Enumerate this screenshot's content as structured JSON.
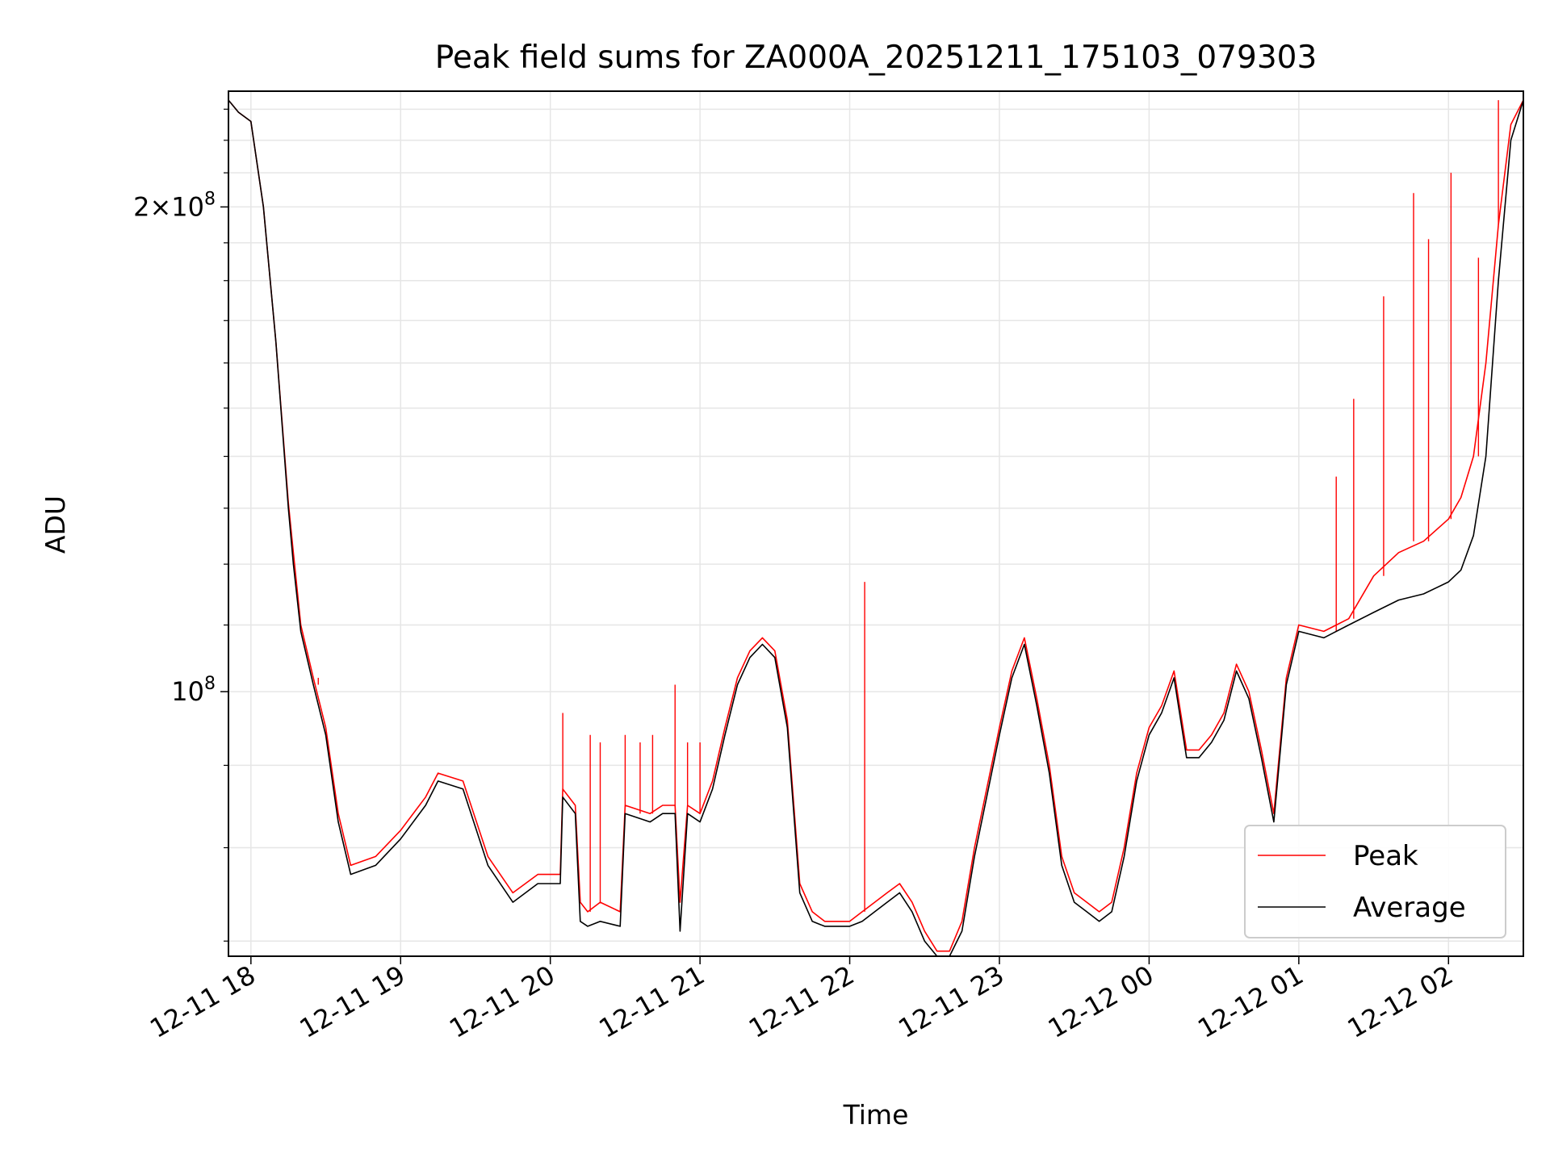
{
  "chart_data": {
    "type": "line",
    "title": "Peak field sums for ZA000A_20251211_175103_079303",
    "xlabel": "Time",
    "ylabel": "ADU",
    "yscale": "log",
    "ylim": [
      68500000,
      236000000
    ],
    "xlim": [
      "2025-12-11 17:51",
      "2025-12-12 02:30"
    ],
    "grid": true,
    "legend_position": "lower right",
    "x_ticks": [
      "12-11 18",
      "12-11 19",
      "12-11 20",
      "12-11 21",
      "12-11 22",
      "12-11 23",
      "12-12 00",
      "12-12 01",
      "12-12 02"
    ],
    "y_ticks": [
      {
        "label": "2 × 10^8",
        "mantissa": "2",
        "exp": "8",
        "value": 200000000
      },
      {
        "label": "10^8",
        "mantissa": "",
        "exp": "8",
        "value": 100000000
      }
    ],
    "series": [
      {
        "name": "Peak",
        "color": "#ff0000",
        "x": [
          "2025-12-11 17:51",
          "2025-12-11 17:55",
          "2025-12-11 18:00",
          "2025-12-11 18:05",
          "2025-12-11 18:10",
          "2025-12-11 18:15",
          "2025-12-11 18:17",
          "2025-12-11 18:20",
          "2025-12-11 18:25",
          "2025-12-11 18:30",
          "2025-12-11 18:35",
          "2025-12-11 18:40",
          "2025-12-11 18:50",
          "2025-12-11 19:00",
          "2025-12-11 19:10",
          "2025-12-11 19:15",
          "2025-12-11 19:25",
          "2025-12-11 19:35",
          "2025-12-11 19:45",
          "2025-12-11 19:55",
          "2025-12-11 20:04",
          "2025-12-11 20:05",
          "2025-12-11 20:10",
          "2025-12-11 20:12",
          "2025-12-11 20:15",
          "2025-12-11 20:20",
          "2025-12-11 20:28",
          "2025-12-11 20:30",
          "2025-12-11 20:40",
          "2025-12-11 20:45",
          "2025-12-11 20:50",
          "2025-12-11 20:52",
          "2025-12-11 20:55",
          "2025-12-11 21:00",
          "2025-12-11 21:05",
          "2025-12-11 21:10",
          "2025-12-11 21:15",
          "2025-12-11 21:20",
          "2025-12-11 21:25",
          "2025-12-11 21:30",
          "2025-12-11 21:35",
          "2025-12-11 21:40",
          "2025-12-11 21:45",
          "2025-12-11 21:50",
          "2025-12-11 22:00",
          "2025-12-11 22:05",
          "2025-12-11 22:10",
          "2025-12-11 22:15",
          "2025-12-11 22:20",
          "2025-12-11 22:25",
          "2025-12-11 22:30",
          "2025-12-11 22:35",
          "2025-12-11 22:40",
          "2025-12-11 22:45",
          "2025-12-11 22:50",
          "2025-12-11 23:00",
          "2025-12-11 23:05",
          "2025-12-11 23:10",
          "2025-12-11 23:15",
          "2025-12-11 23:20",
          "2025-12-11 23:25",
          "2025-12-11 23:30",
          "2025-12-11 23:35",
          "2025-12-11 23:40",
          "2025-12-11 23:45",
          "2025-12-11 23:50",
          "2025-12-11 23:55",
          "2025-12-12 00:00",
          "2025-12-12 00:05",
          "2025-12-12 00:10",
          "2025-12-12 00:15",
          "2025-12-12 00:20",
          "2025-12-12 00:25",
          "2025-12-12 00:30",
          "2025-12-12 00:35",
          "2025-12-12 00:40",
          "2025-12-12 00:45",
          "2025-12-12 00:50",
          "2025-12-12 00:55",
          "2025-12-12 01:00",
          "2025-12-12 01:10",
          "2025-12-12 01:20",
          "2025-12-12 01:30",
          "2025-12-12 01:40",
          "2025-12-12 01:50",
          "2025-12-12 02:00",
          "2025-12-12 02:05",
          "2025-12-12 02:10",
          "2025-12-12 02:15",
          "2025-12-12 02:20",
          "2025-12-12 02:25",
          "2025-12-12 02:30"
        ],
        "y": [
          233000000,
          229000000,
          226000000,
          200000000,
          165000000,
          131000000,
          122000000,
          110000000,
          102000000,
          95000000,
          84000000,
          78000000,
          79000000,
          82000000,
          86000000,
          89000000,
          88000000,
          79000000,
          75000000,
          77000000,
          77000000,
          87000000,
          85000000,
          74000000,
          73000000,
          74000000,
          73000000,
          85000000,
          84000000,
          85000000,
          85000000,
          74000000,
          85000000,
          84000000,
          88000000,
          95000000,
          102000000,
          106000000,
          108000000,
          106000000,
          96000000,
          76000000,
          73000000,
          72000000,
          72000000,
          73000000,
          74000000,
          75000000,
          76000000,
          74000000,
          71000000,
          69000000,
          69000000,
          72000000,
          80000000,
          95000000,
          103000000,
          108000000,
          99000000,
          90000000,
          79000000,
          75000000,
          74000000,
          73000000,
          74000000,
          80000000,
          89000000,
          95000000,
          98000000,
          103000000,
          92000000,
          92000000,
          94000000,
          97000000,
          104000000,
          100000000,
          92000000,
          84000000,
          102000000,
          110000000,
          109000000,
          111000000,
          118000000,
          122000000,
          124000000,
          128000000,
          132000000,
          140000000,
          160000000,
          195000000,
          225000000,
          233000000
        ],
        "spikes": [
          {
            "x": "2025-12-11 18:17",
            "y": 122000000
          },
          {
            "x": "2025-12-11 18:27",
            "y": 101000000
          },
          {
            "x": "2025-12-11 20:05",
            "y": 97000000
          },
          {
            "x": "2025-12-11 20:16",
            "y": 94000000
          },
          {
            "x": "2025-12-11 20:20",
            "y": 93000000
          },
          {
            "x": "2025-12-11 20:30",
            "y": 94000000
          },
          {
            "x": "2025-12-11 20:36",
            "y": 93000000
          },
          {
            "x": "2025-12-11 20:41",
            "y": 94000000
          },
          {
            "x": "2025-12-11 20:50",
            "y": 101000000
          },
          {
            "x": "2025-12-11 20:55",
            "y": 93000000
          },
          {
            "x": "2025-12-11 21:00",
            "y": 93000000
          },
          {
            "x": "2025-12-11 22:06",
            "y": 117000000
          },
          {
            "x": "2025-12-12 01:15",
            "y": 136000000
          },
          {
            "x": "2025-12-12 01:22",
            "y": 152000000
          },
          {
            "x": "2025-12-12 01:34",
            "y": 176000000
          },
          {
            "x": "2025-12-12 01:46",
            "y": 204000000
          },
          {
            "x": "2025-12-12 01:52",
            "y": 191000000
          },
          {
            "x": "2025-12-12 02:01",
            "y": 210000000
          },
          {
            "x": "2025-12-12 02:12",
            "y": 186000000
          },
          {
            "x": "2025-12-12 02:20",
            "y": 233000000
          }
        ]
      },
      {
        "name": "Average",
        "color": "#000000",
        "x": [
          "2025-12-11 17:51",
          "2025-12-11 17:55",
          "2025-12-11 18:00",
          "2025-12-11 18:05",
          "2025-12-11 18:10",
          "2025-12-11 18:15",
          "2025-12-11 18:17",
          "2025-12-11 18:20",
          "2025-12-11 18:25",
          "2025-12-11 18:30",
          "2025-12-11 18:35",
          "2025-12-11 18:40",
          "2025-12-11 18:50",
          "2025-12-11 19:00",
          "2025-12-11 19:10",
          "2025-12-11 19:15",
          "2025-12-11 19:25",
          "2025-12-11 19:35",
          "2025-12-11 19:45",
          "2025-12-11 19:55",
          "2025-12-11 20:04",
          "2025-12-11 20:05",
          "2025-12-11 20:10",
          "2025-12-11 20:12",
          "2025-12-11 20:15",
          "2025-12-11 20:20",
          "2025-12-11 20:28",
          "2025-12-11 20:30",
          "2025-12-11 20:40",
          "2025-12-11 20:45",
          "2025-12-11 20:50",
          "2025-12-11 20:52",
          "2025-12-11 20:55",
          "2025-12-11 21:00",
          "2025-12-11 21:05",
          "2025-12-11 21:10",
          "2025-12-11 21:15",
          "2025-12-11 21:20",
          "2025-12-11 21:25",
          "2025-12-11 21:30",
          "2025-12-11 21:35",
          "2025-12-11 21:40",
          "2025-12-11 21:45",
          "2025-12-11 21:50",
          "2025-12-11 22:00",
          "2025-12-11 22:05",
          "2025-12-11 22:10",
          "2025-12-11 22:15",
          "2025-12-11 22:20",
          "2025-12-11 22:25",
          "2025-12-11 22:30",
          "2025-12-11 22:35",
          "2025-12-11 22:40",
          "2025-12-11 22:45",
          "2025-12-11 22:50",
          "2025-12-11 23:00",
          "2025-12-11 23:05",
          "2025-12-11 23:10",
          "2025-12-11 23:15",
          "2025-12-11 23:20",
          "2025-12-11 23:25",
          "2025-12-11 23:30",
          "2025-12-11 23:35",
          "2025-12-11 23:40",
          "2025-12-11 23:45",
          "2025-12-11 23:50",
          "2025-12-11 23:55",
          "2025-12-12 00:00",
          "2025-12-12 00:05",
          "2025-12-12 00:10",
          "2025-12-12 00:15",
          "2025-12-12 00:20",
          "2025-12-12 00:25",
          "2025-12-12 00:30",
          "2025-12-12 00:35",
          "2025-12-12 00:40",
          "2025-12-12 00:45",
          "2025-12-12 00:50",
          "2025-12-12 00:55",
          "2025-12-12 01:00",
          "2025-12-12 01:10",
          "2025-12-12 01:20",
          "2025-12-12 01:30",
          "2025-12-12 01:40",
          "2025-12-12 01:50",
          "2025-12-12 02:00",
          "2025-12-12 02:05",
          "2025-12-12 02:10",
          "2025-12-12 02:15",
          "2025-12-12 02:20",
          "2025-12-12 02:25",
          "2025-12-12 02:30"
        ],
        "y": [
          233000000,
          229000000,
          226000000,
          200000000,
          165000000,
          130000000,
          120000000,
          109000000,
          101000000,
          94000000,
          83000000,
          77000000,
          78000000,
          81000000,
          85000000,
          88000000,
          87000000,
          78000000,
          74000000,
          76000000,
          76000000,
          86000000,
          84000000,
          72000000,
          71500000,
          72000000,
          71500000,
          84000000,
          83000000,
          84000000,
          84000000,
          71000000,
          84000000,
          83000000,
          87000000,
          94000000,
          101000000,
          105000000,
          107000000,
          105000000,
          95000000,
          75000000,
          72000000,
          71500000,
          71500000,
          72000000,
          73000000,
          74000000,
          75000000,
          73000000,
          70000000,
          68500000,
          68500000,
          71000000,
          79000000,
          94000000,
          102000000,
          107000000,
          98000000,
          89000000,
          78000000,
          74000000,
          73000000,
          72000000,
          73000000,
          79000000,
          88000000,
          94000000,
          97000000,
          102000000,
          91000000,
          91000000,
          93000000,
          96000000,
          103000000,
          99000000,
          91000000,
          83000000,
          101000000,
          109000000,
          108000000,
          110000000,
          112000000,
          114000000,
          115000000,
          117000000,
          119000000,
          125000000,
          140000000,
          180000000,
          220000000,
          233000000
        ]
      }
    ]
  }
}
